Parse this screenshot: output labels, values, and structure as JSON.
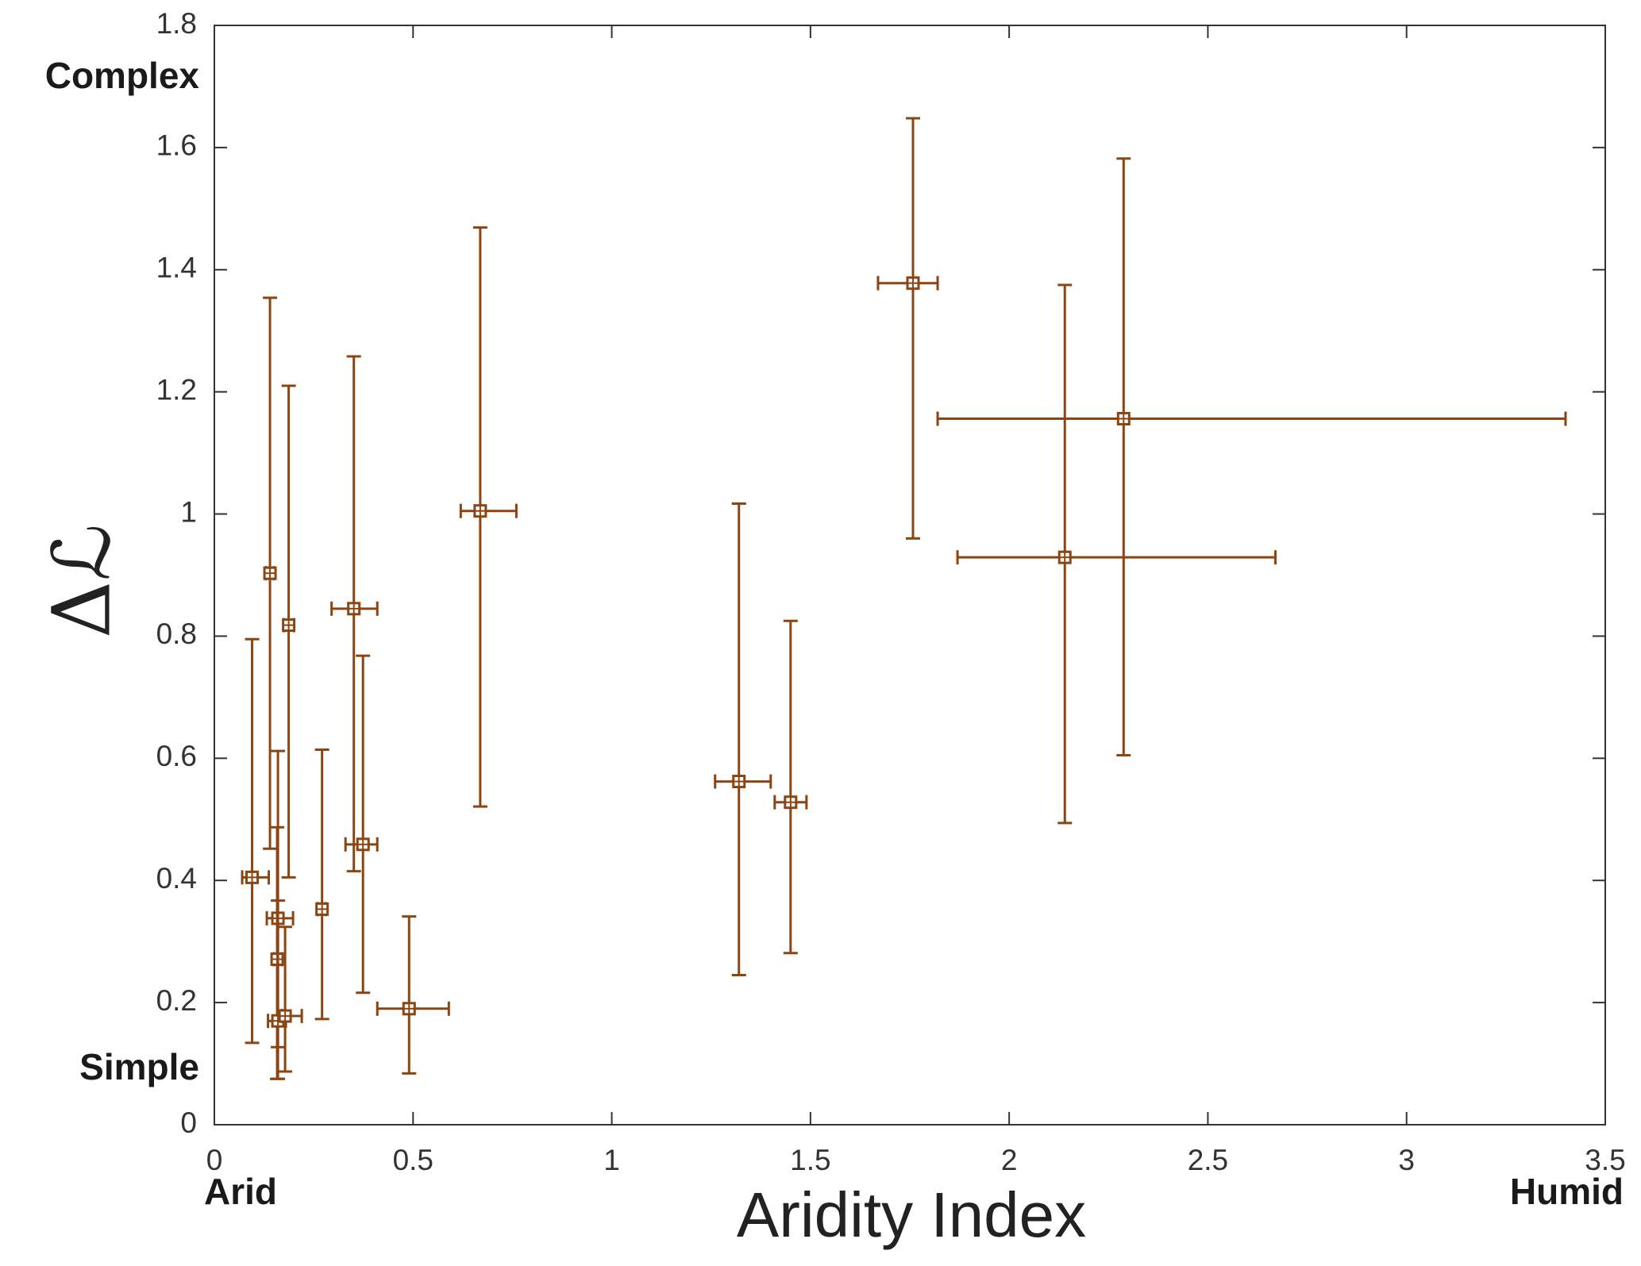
{
  "chart_data": {
    "type": "errorbar-scatter",
    "x_label": "Aridity Index",
    "y_label": "Δℒ",
    "annotations": {
      "y_high": "Complex",
      "y_low": "Simple",
      "x_low": "Arid",
      "x_high": "Humid"
    },
    "color": "#8b4513",
    "xlim": [
      0,
      3.5
    ],
    "ylim": [
      0,
      1.8
    ],
    "xticks": [
      0,
      0.5,
      1,
      1.5,
      2,
      2.5,
      3,
      3.5
    ],
    "yticks": [
      0,
      0.2,
      0.4,
      0.6,
      0.8,
      1,
      1.2,
      1.4,
      1.6,
      1.8
    ],
    "x": [
      0.095,
      0.14,
      0.187,
      0.16,
      0.158,
      0.16,
      0.178,
      0.271,
      0.351,
      0.374,
      0.49,
      0.669,
      1.32,
      1.45,
      1.758,
      2.14,
      2.288
    ],
    "values": [
      0.405,
      0.903,
      0.818,
      0.338,
      0.271,
      0.17,
      0.178,
      0.353,
      0.845,
      0.459,
      0.19,
      1.005,
      0.562,
      0.528,
      1.378,
      0.929,
      1.156
    ],
    "x_lower": [
      0.07,
      0.13,
      0.175,
      0.132,
      0.15,
      0.135,
      0.17,
      0.26,
      0.295,
      0.33,
      0.41,
      0.62,
      1.26,
      1.41,
      1.67,
      1.87,
      1.82
    ],
    "x_upper": [
      0.137,
      0.15,
      0.2,
      0.198,
      0.17,
      0.18,
      0.22,
      0.28,
      0.41,
      0.41,
      0.59,
      0.76,
      1.4,
      1.49,
      1.82,
      2.67,
      3.4
    ],
    "y_lower": [
      0.134,
      0.452,
      0.405,
      0.075,
      0.075,
      0.127,
      0.087,
      0.173,
      0.415,
      0.216,
      0.084,
      0.521,
      0.245,
      0.281,
      0.96,
      0.494,
      0.605
    ],
    "y_upper": [
      0.795,
      1.354,
      1.21,
      0.612,
      0.487,
      0.367,
      0.324,
      0.614,
      1.258,
      0.768,
      0.341,
      1.469,
      1.017,
      0.825,
      1.648,
      1.375,
      1.582
    ]
  }
}
